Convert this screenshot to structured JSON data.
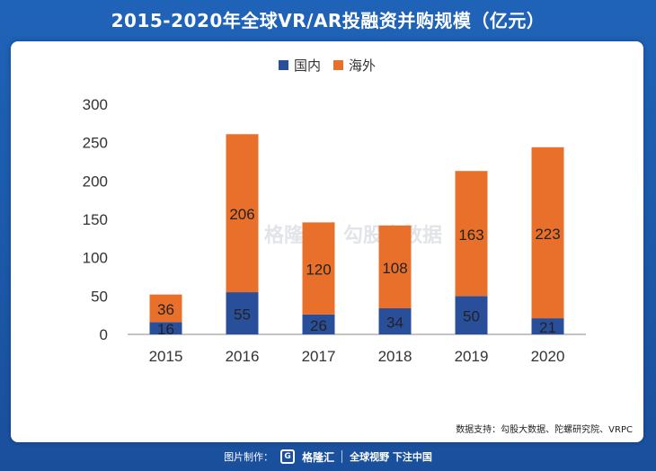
{
  "title": "2015-2020年全球VR/AR投融资并购规模（亿元）",
  "colors": {
    "domestic": "#2a4f9a",
    "overseas": "#e8702a",
    "axis": "#888888"
  },
  "legend": {
    "domestic": "国内",
    "overseas": "海外"
  },
  "source": "数据支持：勾股大数据、陀螺研究院、VRPC",
  "watermark": {
    "brand": "格隆汇",
    "partner": "勾股大数据"
  },
  "footer": {
    "label": "图片制作：",
    "brand": "格隆汇",
    "slogan": "全球视野 下注中国"
  },
  "chart_data": {
    "type": "bar",
    "stacked": true,
    "title": "2015-2020年全球VR/AR投融资并购规模（亿元）",
    "categories": [
      "2015",
      "2016",
      "2017",
      "2018",
      "2019",
      "2020"
    ],
    "series": [
      {
        "name": "国内",
        "values": [
          16,
          55,
          26,
          34,
          50,
          21
        ]
      },
      {
        "name": "海外",
        "values": [
          36,
          206,
          120,
          108,
          163,
          223
        ]
      }
    ],
    "ylim": [
      0,
      300
    ],
    "yticks": [
      0,
      50,
      100,
      150,
      200,
      250,
      300
    ],
    "grid": false,
    "legend_position": "top-center"
  }
}
